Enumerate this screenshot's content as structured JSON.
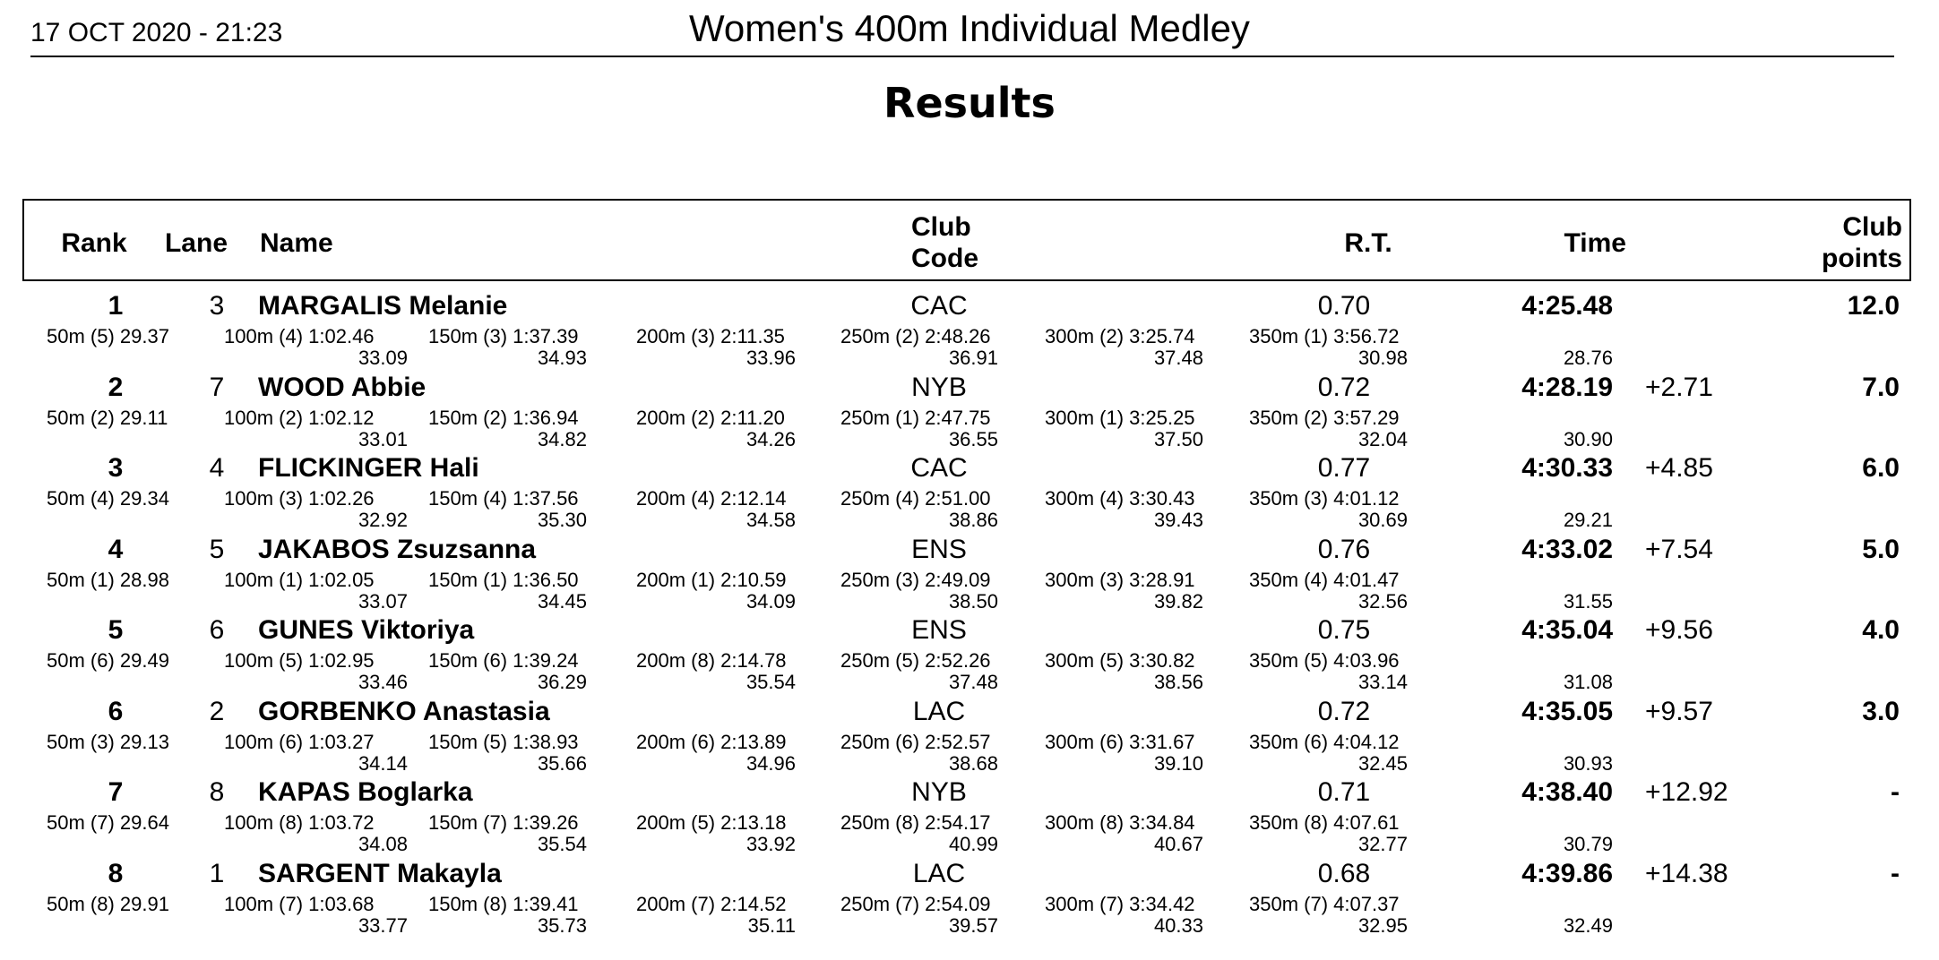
{
  "header": {
    "datetime": "17 OCT 2020 - 21:23",
    "event": "Women's 400m Individual Medley",
    "subtitle": "Results"
  },
  "columns": {
    "rank": "Rank",
    "lane": "Lane",
    "name": "Name",
    "club": "Club\nCode",
    "rt": "R.T.",
    "time": "Time",
    "points": "Club\npoints"
  },
  "results": [
    {
      "rank": "1",
      "lane": "3",
      "name": "MARGALIS Melanie",
      "club": "CAC",
      "rt": "0.70",
      "time": "4:25.48",
      "behind": "",
      "points": "12.0",
      "splits": [
        {
          "cum": "50m  (5) 29.37",
          "lap": ""
        },
        {
          "cum": "100m  (4) 1:02.46",
          "lap": "33.09"
        },
        {
          "cum": "150m  (3) 1:37.39",
          "lap": "34.93"
        },
        {
          "cum": "200m  (3) 2:11.35",
          "lap": "33.96"
        },
        {
          "cum": "250m  (2) 2:48.26",
          "lap": "36.91"
        },
        {
          "cum": "300m  (2) 3:25.74",
          "lap": "37.48"
        },
        {
          "cum": "350m  (1) 3:56.72",
          "lap": "30.98"
        }
      ],
      "last_lap": "28.76"
    },
    {
      "rank": "2",
      "lane": "7",
      "name": "WOOD Abbie",
      "club": "NYB",
      "rt": "0.72",
      "time": "4:28.19",
      "behind": "+2.71",
      "points": "7.0",
      "splits": [
        {
          "cum": "50m  (2) 29.11",
          "lap": ""
        },
        {
          "cum": "100m  (2) 1:02.12",
          "lap": "33.01"
        },
        {
          "cum": "150m  (2) 1:36.94",
          "lap": "34.82"
        },
        {
          "cum": "200m  (2) 2:11.20",
          "lap": "34.26"
        },
        {
          "cum": "250m  (1) 2:47.75",
          "lap": "36.55"
        },
        {
          "cum": "300m  (1) 3:25.25",
          "lap": "37.50"
        },
        {
          "cum": "350m  (2) 3:57.29",
          "lap": "32.04"
        }
      ],
      "last_lap": "30.90"
    },
    {
      "rank": "3",
      "lane": "4",
      "name": "FLICKINGER Hali",
      "club": "CAC",
      "rt": "0.77",
      "time": "4:30.33",
      "behind": "+4.85",
      "points": "6.0",
      "splits": [
        {
          "cum": "50m  (4) 29.34",
          "lap": ""
        },
        {
          "cum": "100m  (3) 1:02.26",
          "lap": "32.92"
        },
        {
          "cum": "150m  (4) 1:37.56",
          "lap": "35.30"
        },
        {
          "cum": "200m  (4) 2:12.14",
          "lap": "34.58"
        },
        {
          "cum": "250m  (4) 2:51.00",
          "lap": "38.86"
        },
        {
          "cum": "300m  (4) 3:30.43",
          "lap": "39.43"
        },
        {
          "cum": "350m  (3) 4:01.12",
          "lap": "30.69"
        }
      ],
      "last_lap": "29.21"
    },
    {
      "rank": "4",
      "lane": "5",
      "name": "JAKABOS Zsuzsanna",
      "club": "ENS",
      "rt": "0.76",
      "time": "4:33.02",
      "behind": "+7.54",
      "points": "5.0",
      "splits": [
        {
          "cum": "50m  (1) 28.98",
          "lap": ""
        },
        {
          "cum": "100m  (1) 1:02.05",
          "lap": "33.07"
        },
        {
          "cum": "150m  (1) 1:36.50",
          "lap": "34.45"
        },
        {
          "cum": "200m  (1) 2:10.59",
          "lap": "34.09"
        },
        {
          "cum": "250m  (3) 2:49.09",
          "lap": "38.50"
        },
        {
          "cum": "300m  (3) 3:28.91",
          "lap": "39.82"
        },
        {
          "cum": "350m  (4) 4:01.47",
          "lap": "32.56"
        }
      ],
      "last_lap": "31.55"
    },
    {
      "rank": "5",
      "lane": "6",
      "name": "GUNES Viktoriya",
      "club": "ENS",
      "rt": "0.75",
      "time": "4:35.04",
      "behind": "+9.56",
      "points": "4.0",
      "splits": [
        {
          "cum": "50m  (6) 29.49",
          "lap": ""
        },
        {
          "cum": "100m  (5) 1:02.95",
          "lap": "33.46"
        },
        {
          "cum": "150m  (6) 1:39.24",
          "lap": "36.29"
        },
        {
          "cum": "200m  (8) 2:14.78",
          "lap": "35.54"
        },
        {
          "cum": "250m  (5) 2:52.26",
          "lap": "37.48"
        },
        {
          "cum": "300m  (5) 3:30.82",
          "lap": "38.56"
        },
        {
          "cum": "350m  (5) 4:03.96",
          "lap": "33.14"
        }
      ],
      "last_lap": "31.08"
    },
    {
      "rank": "6",
      "lane": "2",
      "name": "GORBENKO Anastasia",
      "club": "LAC",
      "rt": "0.72",
      "time": "4:35.05",
      "behind": "+9.57",
      "points": "3.0",
      "splits": [
        {
          "cum": "50m  (3) 29.13",
          "lap": ""
        },
        {
          "cum": "100m  (6) 1:03.27",
          "lap": "34.14"
        },
        {
          "cum": "150m  (5) 1:38.93",
          "lap": "35.66"
        },
        {
          "cum": "200m  (6) 2:13.89",
          "lap": "34.96"
        },
        {
          "cum": "250m  (6) 2:52.57",
          "lap": "38.68"
        },
        {
          "cum": "300m  (6) 3:31.67",
          "lap": "39.10"
        },
        {
          "cum": "350m  (6) 4:04.12",
          "lap": "32.45"
        }
      ],
      "last_lap": "30.93"
    },
    {
      "rank": "7",
      "lane": "8",
      "name": "KAPAS Boglarka",
      "club": "NYB",
      "rt": "0.71",
      "time": "4:38.40",
      "behind": "+12.92",
      "points": "-",
      "splits": [
        {
          "cum": "50m  (7) 29.64",
          "lap": ""
        },
        {
          "cum": "100m  (8) 1:03.72",
          "lap": "34.08"
        },
        {
          "cum": "150m  (7) 1:39.26",
          "lap": "35.54"
        },
        {
          "cum": "200m  (5) 2:13.18",
          "lap": "33.92"
        },
        {
          "cum": "250m  (8) 2:54.17",
          "lap": "40.99"
        },
        {
          "cum": "300m  (8) 3:34.84",
          "lap": "40.67"
        },
        {
          "cum": "350m  (8) 4:07.61",
          "lap": "32.77"
        }
      ],
      "last_lap": "30.79"
    },
    {
      "rank": "8",
      "lane": "1",
      "name": "SARGENT Makayla",
      "club": "LAC",
      "rt": "0.68",
      "time": "4:39.86",
      "behind": "+14.38",
      "points": "-",
      "splits": [
        {
          "cum": "50m  (8) 29.91",
          "lap": ""
        },
        {
          "cum": "100m  (7) 1:03.68",
          "lap": "33.77"
        },
        {
          "cum": "150m  (8) 1:39.41",
          "lap": "35.73"
        },
        {
          "cum": "200m  (7) 2:14.52",
          "lap": "35.11"
        },
        {
          "cum": "250m  (7) 2:54.09",
          "lap": "39.57"
        },
        {
          "cum": "300m  (7) 3:34.42",
          "lap": "40.33"
        },
        {
          "cum": "350m  (7) 4:07.37",
          "lap": "32.95"
        }
      ],
      "last_lap": "32.49"
    }
  ]
}
